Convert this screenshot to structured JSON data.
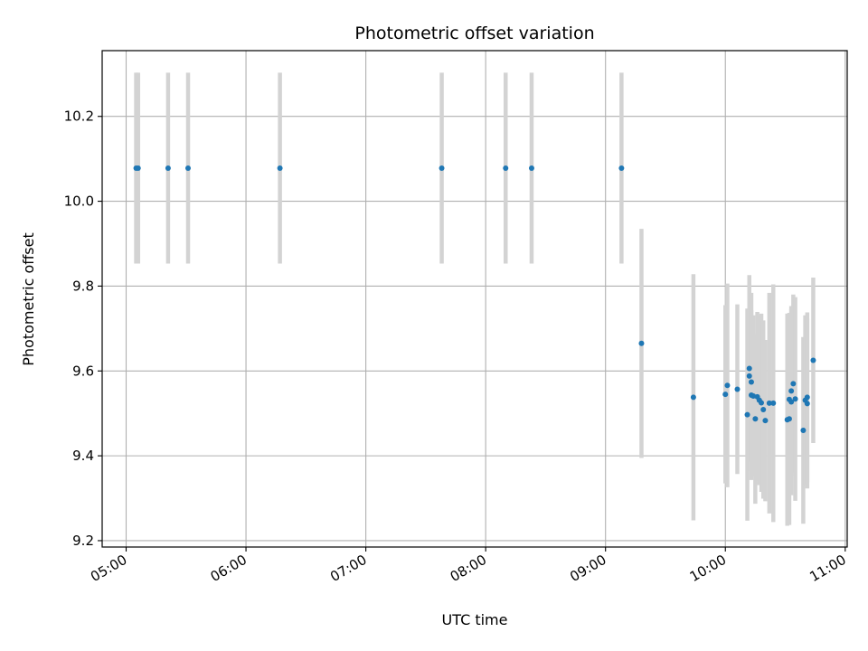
{
  "chart_data": {
    "type": "scatter",
    "title": "Photometric offset variation",
    "xlabel": "UTC time",
    "ylabel": "Photometric offset",
    "x_ticks": [
      "05:00",
      "06:00",
      "07:00",
      "08:00",
      "09:00",
      "10:00",
      "11:00"
    ],
    "y_ticks": [
      "9.2",
      "9.4",
      "9.6",
      "9.8",
      "10.0",
      "10.2"
    ],
    "xlim": [
      "04:48",
      "11:01"
    ],
    "ylim": [
      9.185,
      10.355
    ],
    "grid": true,
    "errorbar_color": "#d3d3d3",
    "point_color": "#1f77b4",
    "series": [
      {
        "points": [
          {
            "x": "05:05",
            "y": 10.078,
            "err": 0.225
          },
          {
            "x": "05:06",
            "y": 10.078,
            "err": 0.225
          },
          {
            "x": "05:21",
            "y": 10.078,
            "err": 0.225
          },
          {
            "x": "05:31",
            "y": 10.078,
            "err": 0.225
          },
          {
            "x": "06:17",
            "y": 10.078,
            "err": 0.225
          },
          {
            "x": "07:38",
            "y": 10.078,
            "err": 0.225
          },
          {
            "x": "08:10",
            "y": 10.078,
            "err": 0.225
          },
          {
            "x": "08:23",
            "y": 10.078,
            "err": 0.225
          },
          {
            "x": "09:08",
            "y": 10.078,
            "err": 0.225
          },
          {
            "x": "09:18",
            "y": 9.665,
            "err": 0.27
          },
          {
            "x": "09:44",
            "y": 9.538,
            "err": 0.29
          },
          {
            "x": "10:00",
            "y": 9.545,
            "err": 0.21
          },
          {
            "x": "10:01",
            "y": 9.566,
            "err": 0.24
          },
          {
            "x": "10:06",
            "y": 9.557,
            "err": 0.2
          },
          {
            "x": "10:11",
            "y": 9.497,
            "err": 0.25
          },
          {
            "x": "10:12",
            "y": 9.606,
            "err": 0.22
          },
          {
            "x": "10:12",
            "y": 9.588,
            "err": 0.2
          },
          {
            "x": "10:13",
            "y": 9.574,
            "err": 0.21
          },
          {
            "x": "10:13",
            "y": 9.543,
            "err": 0.2
          },
          {
            "x": "10:14",
            "y": 9.541,
            "err": 0.19
          },
          {
            "x": "10:15",
            "y": 9.487,
            "err": 0.2
          },
          {
            "x": "10:16",
            "y": 9.539,
            "err": 0.2
          },
          {
            "x": "10:17",
            "y": 9.531,
            "err": 0.2
          },
          {
            "x": "10:18",
            "y": 9.525,
            "err": 0.21
          },
          {
            "x": "10:19",
            "y": 9.509,
            "err": 0.21
          },
          {
            "x": "10:20",
            "y": 9.483,
            "err": 0.19
          },
          {
            "x": "10:22",
            "y": 9.524,
            "err": 0.26
          },
          {
            "x": "10:24",
            "y": 9.524,
            "err": 0.28
          },
          {
            "x": "10:31",
            "y": 9.485,
            "err": 0.25
          },
          {
            "x": "10:32",
            "y": 9.533,
            "err": 0.2
          },
          {
            "x": "10:32",
            "y": 9.487,
            "err": 0.25
          },
          {
            "x": "10:33",
            "y": 9.527,
            "err": 0.22
          },
          {
            "x": "10:33",
            "y": 9.553,
            "err": 0.2
          },
          {
            "x": "10:34",
            "y": 9.57,
            "err": 0.21
          },
          {
            "x": "10:35",
            "y": 9.534,
            "err": 0.24
          },
          {
            "x": "10:39",
            "y": 9.46,
            "err": 0.22
          },
          {
            "x": "10:40",
            "y": 9.531,
            "err": 0.2
          },
          {
            "x": "10:41",
            "y": 9.523,
            "err": 0.2
          },
          {
            "x": "10:41",
            "y": 9.538,
            "err": 0.2
          },
          {
            "x": "10:44",
            "y": 9.625,
            "err": 0.195
          }
        ]
      }
    ]
  }
}
